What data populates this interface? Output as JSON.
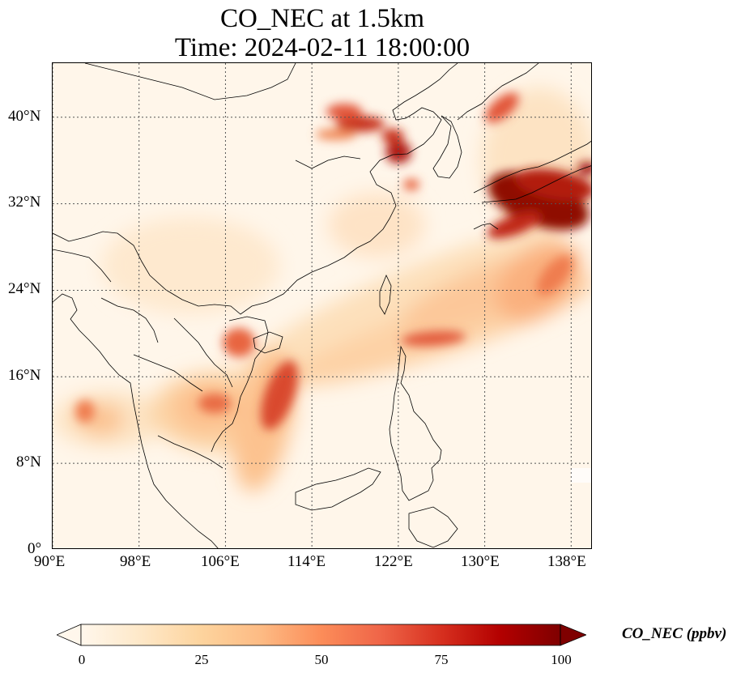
{
  "title": {
    "line1": "CO_NEC at 1.5km",
    "line2": "Time: 2024-02-11 18:00:00"
  },
  "map": {
    "extent": {
      "lon_min": 90,
      "lon_max": 140,
      "lat_min": 0,
      "lat_max": 45
    },
    "x_ticks": [
      "90°E",
      "98°E",
      "106°E",
      "114°E",
      "122°E",
      "130°E",
      "138°E"
    ],
    "y_ticks": [
      "0°",
      "8°N",
      "16°N",
      "24°N",
      "32°N",
      "40°N"
    ],
    "gridlines": "dotted",
    "background_color": "#fff6ea"
  },
  "colorbar": {
    "title": "CO_NEC (ppbv)",
    "ticks": [
      "0",
      "25",
      "50",
      "75",
      "100"
    ],
    "range": [
      0,
      100
    ],
    "extend": "both",
    "colormap": "OrRd",
    "colors": [
      "#fff7ec",
      "#fee8c8",
      "#fdd49e",
      "#fdbb84",
      "#fc8d59",
      "#ef6548",
      "#d7301f",
      "#b30000",
      "#7f0000"
    ]
  }
}
